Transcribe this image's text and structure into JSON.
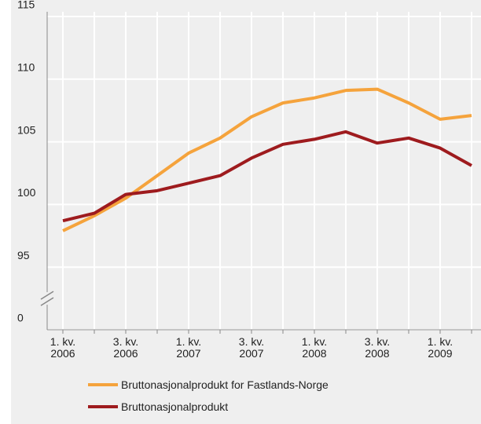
{
  "chart_data": {
    "type": "line",
    "categories": [
      "1. kv.\n2006",
      null,
      "3. kv.\n2006",
      null,
      "1. kv.\n2007",
      null,
      "3. kv.\n2007",
      null,
      "1. kv.\n2008",
      null,
      "3. kv.\n2008",
      null,
      "1. kv.\n2009",
      null
    ],
    "series": [
      {
        "name": "Bruttonasjonalprodukt for Fastlands-Norge",
        "color": "#f5a33c",
        "values": [
          97.9,
          99.1,
          100.5,
          102.3,
          104.1,
          105.3,
          107.0,
          108.1,
          108.5,
          109.1,
          109.2,
          108.1,
          106.8,
          107.1
        ]
      },
      {
        "name": "Bruttonasjonalprodukt",
        "color": "#9e1b1e",
        "values": [
          98.7,
          99.3,
          100.8,
          101.1,
          101.7,
          102.3,
          103.7,
          104.8,
          105.2,
          105.8,
          104.9,
          105.3,
          104.5,
          103.1
        ]
      }
    ],
    "ylim": [
      0,
      115
    ],
    "yticks": [
      0,
      95,
      100,
      105,
      110,
      115
    ],
    "axis_break": [
      0,
      95
    ],
    "grid": true,
    "legend": "bottom"
  }
}
